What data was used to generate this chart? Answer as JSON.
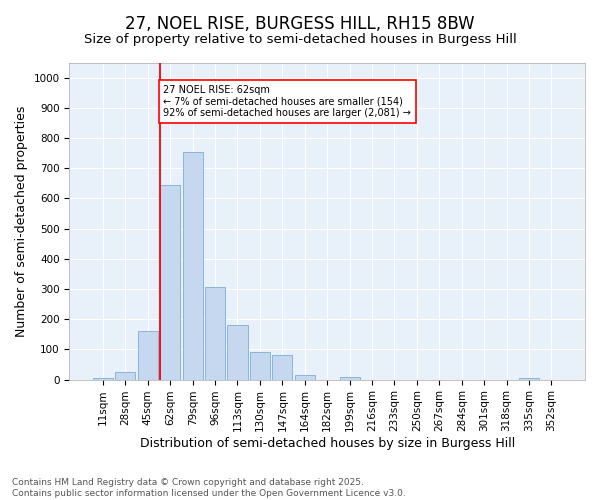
{
  "title": "27, NOEL RISE, BURGESS HILL, RH15 8BW",
  "subtitle": "Size of property relative to semi-detached houses in Burgess Hill",
  "xlabel": "Distribution of semi-detached houses by size in Burgess Hill",
  "ylabel": "Number of semi-detached properties",
  "bar_labels": [
    "11sqm",
    "28sqm",
    "45sqm",
    "62sqm",
    "79sqm",
    "96sqm",
    "113sqm",
    "130sqm",
    "147sqm",
    "164sqm",
    "182sqm",
    "199sqm",
    "216sqm",
    "233sqm",
    "250sqm",
    "267sqm",
    "284sqm",
    "301sqm",
    "318sqm",
    "335sqm",
    "352sqm"
  ],
  "bar_values": [
    5,
    25,
    160,
    645,
    755,
    305,
    180,
    92,
    80,
    15,
    0,
    10,
    0,
    0,
    0,
    0,
    0,
    0,
    0,
    5,
    0
  ],
  "bar_color": "#c5d8f0",
  "bar_edge_color": "#7aaed6",
  "ylim": [
    0,
    1050
  ],
  "yticks": [
    0,
    100,
    200,
    300,
    400,
    500,
    600,
    700,
    800,
    900,
    1000
  ],
  "property_label": "27 NOEL RISE: 62sqm",
  "annotation_line1": "← 7% of semi-detached houses are smaller (154)",
  "annotation_line2": "92% of semi-detached houses are larger (2,081) →",
  "vline_index": 3,
  "footnote1": "Contains HM Land Registry data © Crown copyright and database right 2025.",
  "footnote2": "Contains public sector information licensed under the Open Government Licence v3.0.",
  "bg_color": "#ffffff",
  "plot_bg_color": "#e8f0fa",
  "title_fontsize": 12,
  "subtitle_fontsize": 9.5,
  "axis_label_fontsize": 9,
  "tick_fontsize": 7.5,
  "footnote_fontsize": 6.5
}
